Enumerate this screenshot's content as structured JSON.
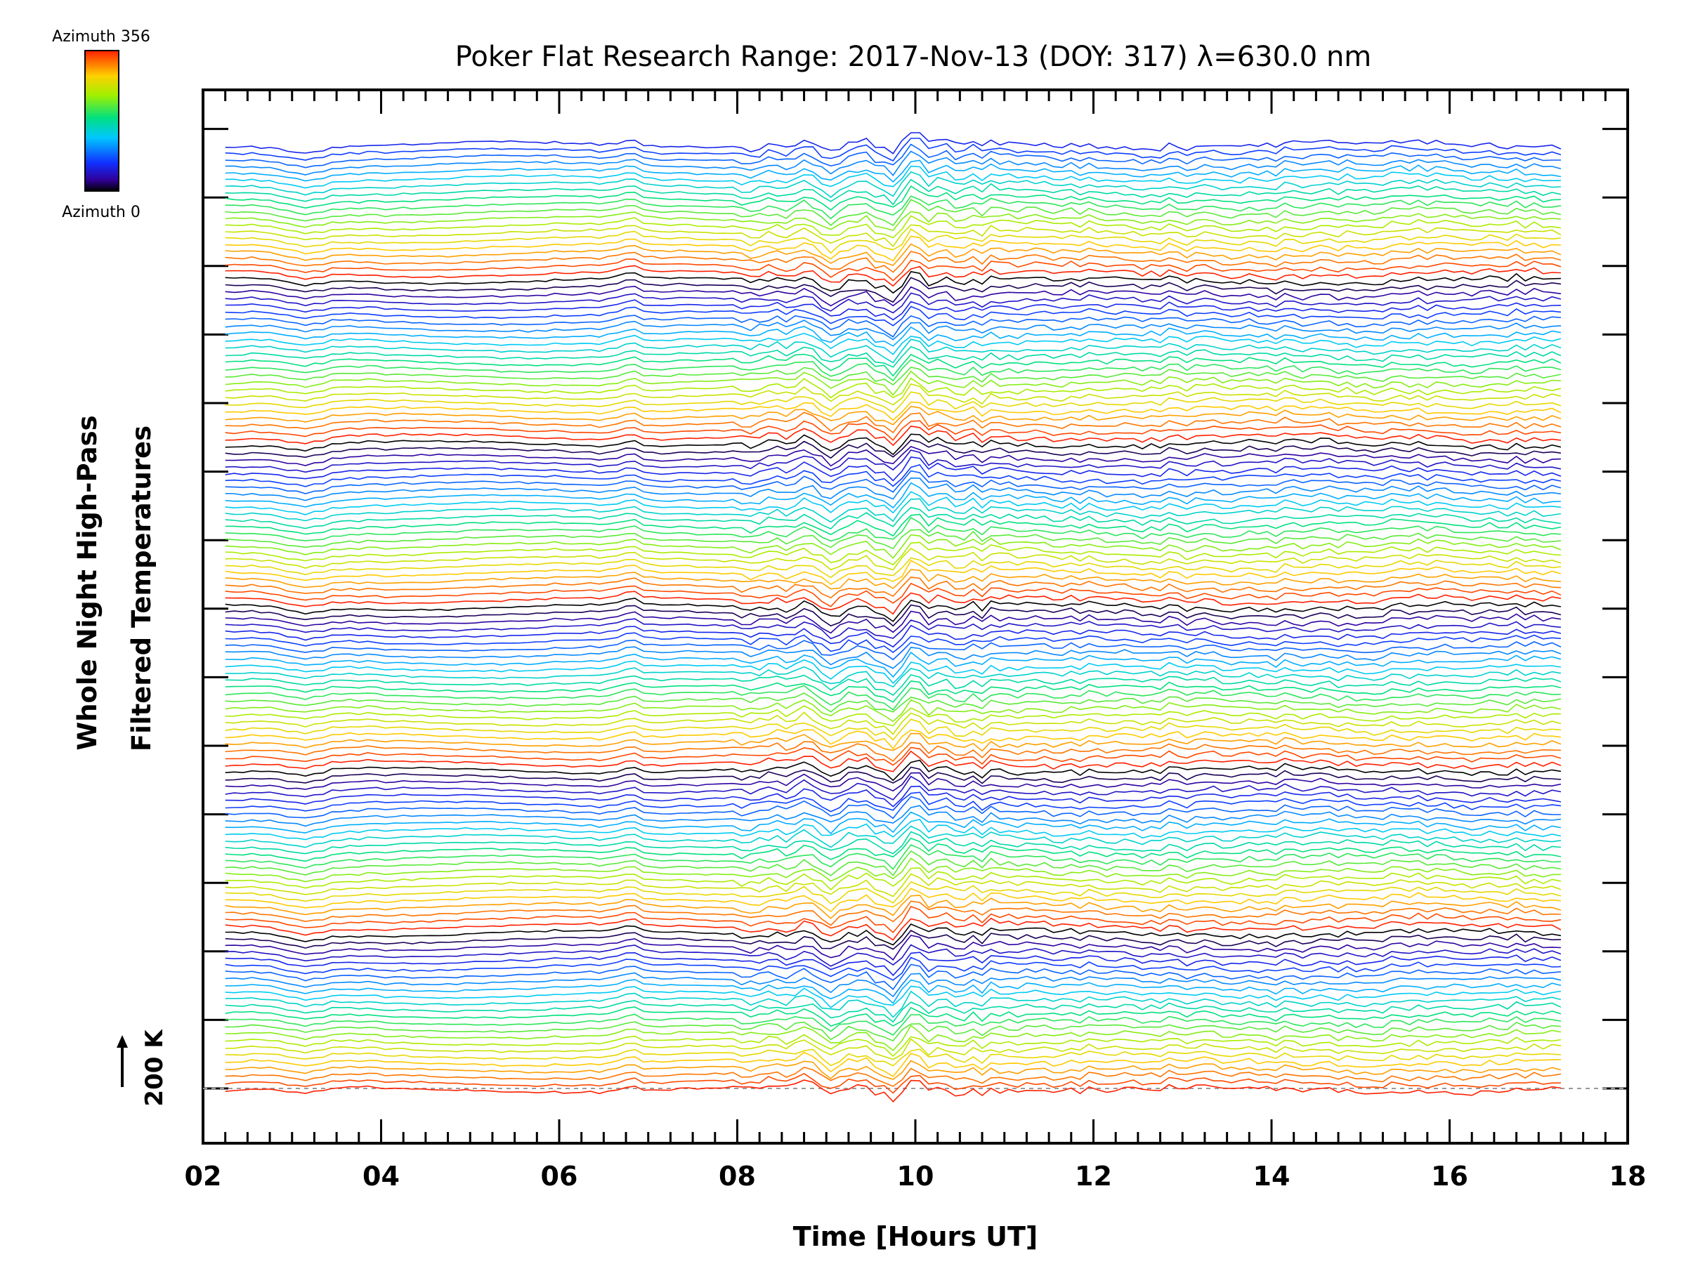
{
  "chart_data": {
    "type": "line",
    "title": "Poker Flat Research Range: 2017-Nov-13 (DOY: 317) λ=630.0 nm",
    "xlabel": "Time [Hours UT]",
    "ylabel_line1": "Whole Night High-Pass",
    "ylabel_line2": "Filtered Temperatures",
    "x_ticks": [
      "02",
      "04",
      "06",
      "08",
      "10",
      "12",
      "14",
      "16",
      "18"
    ],
    "xlim": [
      2,
      18
    ],
    "x_range": [
      2.25,
      17.25
    ],
    "n_series": 140,
    "color_scale": "rainbow (azimuth 0 = black/blue, azimuth 356 = red)",
    "colorbar": {
      "top_label": "Azimuth 356",
      "bottom_label": "Azimuth 0"
    },
    "scale_bar_label": "200 K",
    "baseline": "dashed grey zero line at bottom trace",
    "grid": false,
    "colors": {
      "azimuth_0": "#000000",
      "azimuth_low": "#2020c0",
      "azimuth_mid": "#20c0c0",
      "azimuth_high": "#c0e020",
      "azimuth_356": "#ff3000"
    }
  }
}
